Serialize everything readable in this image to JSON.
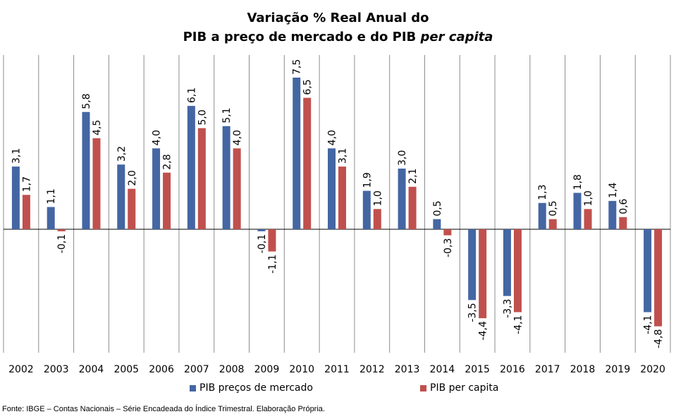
{
  "chart_data": {
    "type": "bar",
    "title_line1": "Variação % Real Anual do",
    "title_line2_prefix": "PIB a preço de mercado e do PIB ",
    "title_line2_italic": "per capita",
    "categories": [
      "2002",
      "2003",
      "2004",
      "2005",
      "2006",
      "2007",
      "2008",
      "2009",
      "2010",
      "2011",
      "2012",
      "2013",
      "2014",
      "2015",
      "2016",
      "2017",
      "2018",
      "2019",
      "2020"
    ],
    "series": [
      {
        "name": "PIB preços de mercado",
        "color": "#4466a3",
        "values": [
          3.1,
          1.1,
          5.8,
          3.2,
          4.0,
          6.1,
          5.1,
          -0.1,
          7.5,
          4.0,
          1.9,
          3.0,
          0.5,
          -3.5,
          -3.3,
          1.3,
          1.8,
          1.4,
          -4.1
        ],
        "labels": [
          "3,1",
          "1,1",
          "5,8",
          "3,2",
          "4,0",
          "6,1",
          "5,1",
          "-0,1",
          "7,5",
          "4,0",
          "1,9",
          "3,0",
          "0,5",
          "-3,5",
          "-3,3",
          "1,3",
          "1,8",
          "1,4",
          "-4,1"
        ]
      },
      {
        "name": "PIB per capita",
        "color": "#c0504d",
        "values": [
          1.7,
          -0.1,
          4.5,
          2.0,
          2.8,
          5.0,
          4.0,
          -1.1,
          6.5,
          3.1,
          1.0,
          2.1,
          -0.3,
          -4.4,
          -4.1,
          0.5,
          1.0,
          0.6,
          -4.8
        ],
        "labels": [
          "1,7",
          "-0,1",
          "4,5",
          "2,0",
          "2,8",
          "5,0",
          "4,0",
          "-1,1",
          "6,5",
          "3,1",
          "1,0",
          "2,1",
          "-0,3",
          "-4,4",
          "-4,1",
          "0,5",
          "1,0",
          "0,6",
          "-4,8"
        ]
      }
    ],
    "grid": "vertical separators between categories",
    "legend_position": "bottom"
  },
  "source_note": "Fonte: IBGE – Contas Nacionais – Série Encadeada do Índice Trimestral. Elaboração Própria."
}
